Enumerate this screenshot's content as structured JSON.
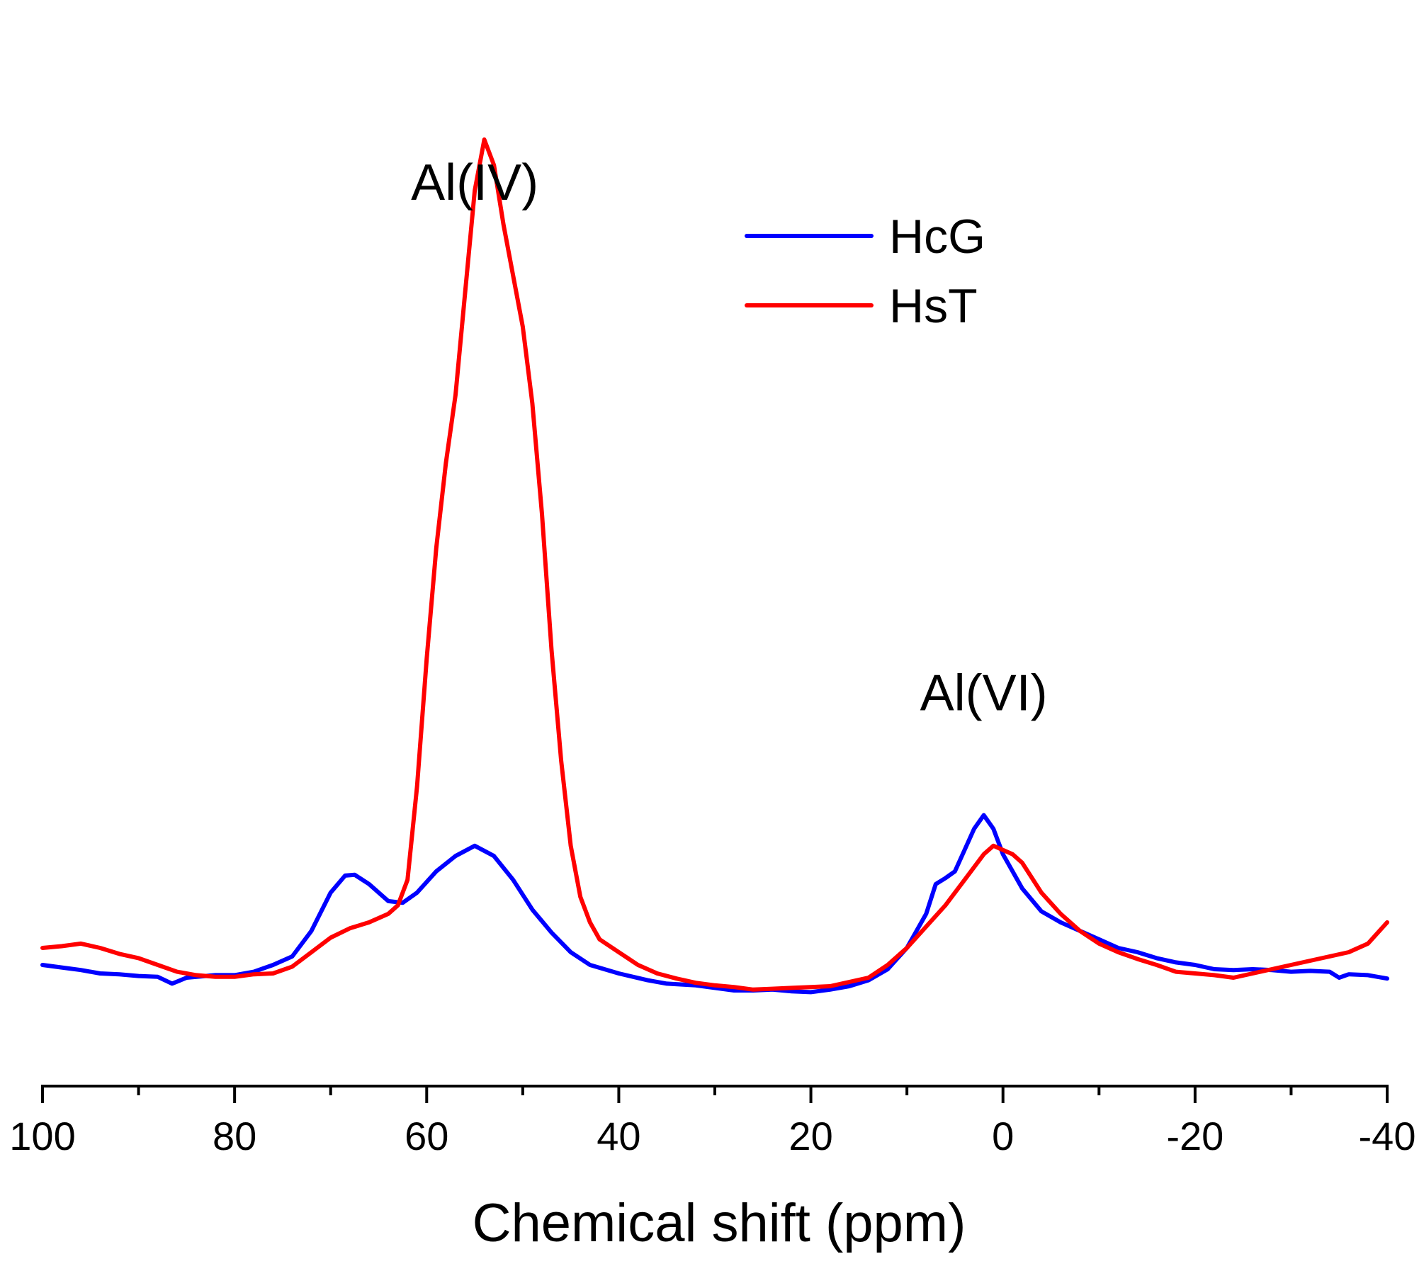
{
  "chart_data": {
    "type": "line",
    "title": "",
    "xlabel": "Chemical shift (ppm)",
    "ylabel": "",
    "xlim": [
      100,
      -40
    ],
    "ylim": [
      0,
      1
    ],
    "x_reversed": true,
    "grid": false,
    "legend_position": "top-right",
    "x_ticks": [
      {
        "value": 100,
        "label": "100"
      },
      {
        "value": 80,
        "label": "80"
      },
      {
        "value": 60,
        "label": "60"
      },
      {
        "value": 40,
        "label": "40"
      },
      {
        "value": 20,
        "label": "20"
      },
      {
        "value": 0,
        "label": "0"
      },
      {
        "value": -20,
        "label": "-20"
      },
      {
        "value": -40,
        "label": "-40"
      }
    ],
    "minor_ticks": [
      90,
      70,
      50,
      30,
      10,
      -10,
      -30
    ],
    "annotations": [
      {
        "text": "Al(IV)",
        "x": 55,
        "y": 0.95
      },
      {
        "text": "Al(VI)",
        "x": 2,
        "y": 0.35
      }
    ],
    "series": [
      {
        "name": "HcG",
        "color": "#0000ff",
        "points": [
          [
            100,
            0.03
          ],
          [
            98,
            0.027
          ],
          [
            96,
            0.024
          ],
          [
            94,
            0.02
          ],
          [
            92,
            0.019
          ],
          [
            90,
            0.017
          ],
          [
            88,
            0.016
          ],
          [
            86.5,
            0.008
          ],
          [
            85,
            0.015
          ],
          [
            82,
            0.018
          ],
          [
            80,
            0.018
          ],
          [
            78,
            0.022
          ],
          [
            76,
            0.03
          ],
          [
            74,
            0.04
          ],
          [
            72,
            0.07
          ],
          [
            70,
            0.115
          ],
          [
            68.5,
            0.135
          ],
          [
            67.5,
            0.136
          ],
          [
            66,
            0.125
          ],
          [
            64,
            0.105
          ],
          [
            62.5,
            0.103
          ],
          [
            61,
            0.115
          ],
          [
            59,
            0.14
          ],
          [
            57,
            0.158
          ],
          [
            55,
            0.17
          ],
          [
            53,
            0.158
          ],
          [
            51,
            0.13
          ],
          [
            49,
            0.095
          ],
          [
            47,
            0.068
          ],
          [
            45,
            0.045
          ],
          [
            43,
            0.03
          ],
          [
            40,
            0.02
          ],
          [
            37,
            0.012
          ],
          [
            35,
            0.008
          ],
          [
            32,
            0.006
          ],
          [
            30,
            0.003
          ],
          [
            28,
            0.0
          ],
          [
            26,
            0.0
          ],
          [
            24,
            0.001
          ],
          [
            22,
            -0.001
          ],
          [
            20,
            -0.002
          ],
          [
            18,
            0.001
          ],
          [
            16,
            0.005
          ],
          [
            14,
            0.012
          ],
          [
            12,
            0.025
          ],
          [
            10,
            0.05
          ],
          [
            8,
            0.09
          ],
          [
            7,
            0.125
          ],
          [
            6,
            0.132
          ],
          [
            5,
            0.14
          ],
          [
            4,
            0.165
          ],
          [
            3,
            0.19
          ],
          [
            2,
            0.206
          ],
          [
            1,
            0.19
          ],
          [
            0,
            0.16
          ],
          [
            -2,
            0.12
          ],
          [
            -4,
            0.093
          ],
          [
            -6,
            0.08
          ],
          [
            -8,
            0.07
          ],
          [
            -10,
            0.06
          ],
          [
            -12,
            0.05
          ],
          [
            -14,
            0.045
          ],
          [
            -16,
            0.038
          ],
          [
            -18,
            0.033
          ],
          [
            -20,
            0.03
          ],
          [
            -22,
            0.025
          ],
          [
            -24,
            0.024
          ],
          [
            -26,
            0.025
          ],
          [
            -28,
            0.024
          ],
          [
            -30,
            0.022
          ],
          [
            -32,
            0.023
          ],
          [
            -34,
            0.022
          ],
          [
            -35,
            0.015
          ],
          [
            -36,
            0.019
          ],
          [
            -38,
            0.018
          ],
          [
            -40,
            0.014
          ]
        ]
      },
      {
        "name": "HsT",
        "color": "#ff0000",
        "points": [
          [
            100,
            0.05
          ],
          [
            98,
            0.052
          ],
          [
            96,
            0.055
          ],
          [
            94,
            0.05
          ],
          [
            92,
            0.043
          ],
          [
            90,
            0.038
          ],
          [
            88,
            0.03
          ],
          [
            86,
            0.022
          ],
          [
            84,
            0.018
          ],
          [
            82,
            0.016
          ],
          [
            80,
            0.016
          ],
          [
            78,
            0.019
          ],
          [
            76,
            0.02
          ],
          [
            74,
            0.028
          ],
          [
            72,
            0.045
          ],
          [
            70,
            0.062
          ],
          [
            68,
            0.073
          ],
          [
            66,
            0.08
          ],
          [
            64,
            0.09
          ],
          [
            63,
            0.1
          ],
          [
            62,
            0.13
          ],
          [
            61,
            0.24
          ],
          [
            60,
            0.39
          ],
          [
            59,
            0.52
          ],
          [
            58,
            0.62
          ],
          [
            57,
            0.7
          ],
          [
            56,
            0.82
          ],
          [
            55,
            0.94
          ],
          [
            54,
            1.0
          ],
          [
            53,
            0.97
          ],
          [
            52,
            0.9
          ],
          [
            51,
            0.84
          ],
          [
            50,
            0.78
          ],
          [
            49,
            0.69
          ],
          [
            48,
            0.56
          ],
          [
            47,
            0.4
          ],
          [
            46,
            0.27
          ],
          [
            45,
            0.17
          ],
          [
            44,
            0.11
          ],
          [
            43,
            0.08
          ],
          [
            42,
            0.06
          ],
          [
            40,
            0.045
          ],
          [
            38,
            0.03
          ],
          [
            36,
            0.02
          ],
          [
            34,
            0.014
          ],
          [
            32,
            0.009
          ],
          [
            30,
            0.006
          ],
          [
            28,
            0.004
          ],
          [
            26,
            0.001
          ],
          [
            24,
            0.002
          ],
          [
            22,
            0.003
          ],
          [
            20,
            0.004
          ],
          [
            18,
            0.005
          ],
          [
            16,
            0.01
          ],
          [
            14,
            0.015
          ],
          [
            12,
            0.03
          ],
          [
            10,
            0.05
          ],
          [
            8,
            0.075
          ],
          [
            6,
            0.1
          ],
          [
            4,
            0.13
          ],
          [
            2,
            0.16
          ],
          [
            1,
            0.17
          ],
          [
            0,
            0.165
          ],
          [
            -1,
            0.16
          ],
          [
            -2,
            0.15
          ],
          [
            -4,
            0.115
          ],
          [
            -6,
            0.09
          ],
          [
            -8,
            0.07
          ],
          [
            -10,
            0.055
          ],
          [
            -12,
            0.045
          ],
          [
            -14,
            0.037
          ],
          [
            -16,
            0.03
          ],
          [
            -18,
            0.022
          ],
          [
            -20,
            0.02
          ],
          [
            -22,
            0.018
          ],
          [
            -24,
            0.015
          ],
          [
            -26,
            0.02
          ],
          [
            -28,
            0.025
          ],
          [
            -30,
            0.03
          ],
          [
            -32,
            0.035
          ],
          [
            -34,
            0.04
          ],
          [
            -36,
            0.045
          ],
          [
            -38,
            0.055
          ],
          [
            -40,
            0.08
          ]
        ]
      }
    ]
  }
}
